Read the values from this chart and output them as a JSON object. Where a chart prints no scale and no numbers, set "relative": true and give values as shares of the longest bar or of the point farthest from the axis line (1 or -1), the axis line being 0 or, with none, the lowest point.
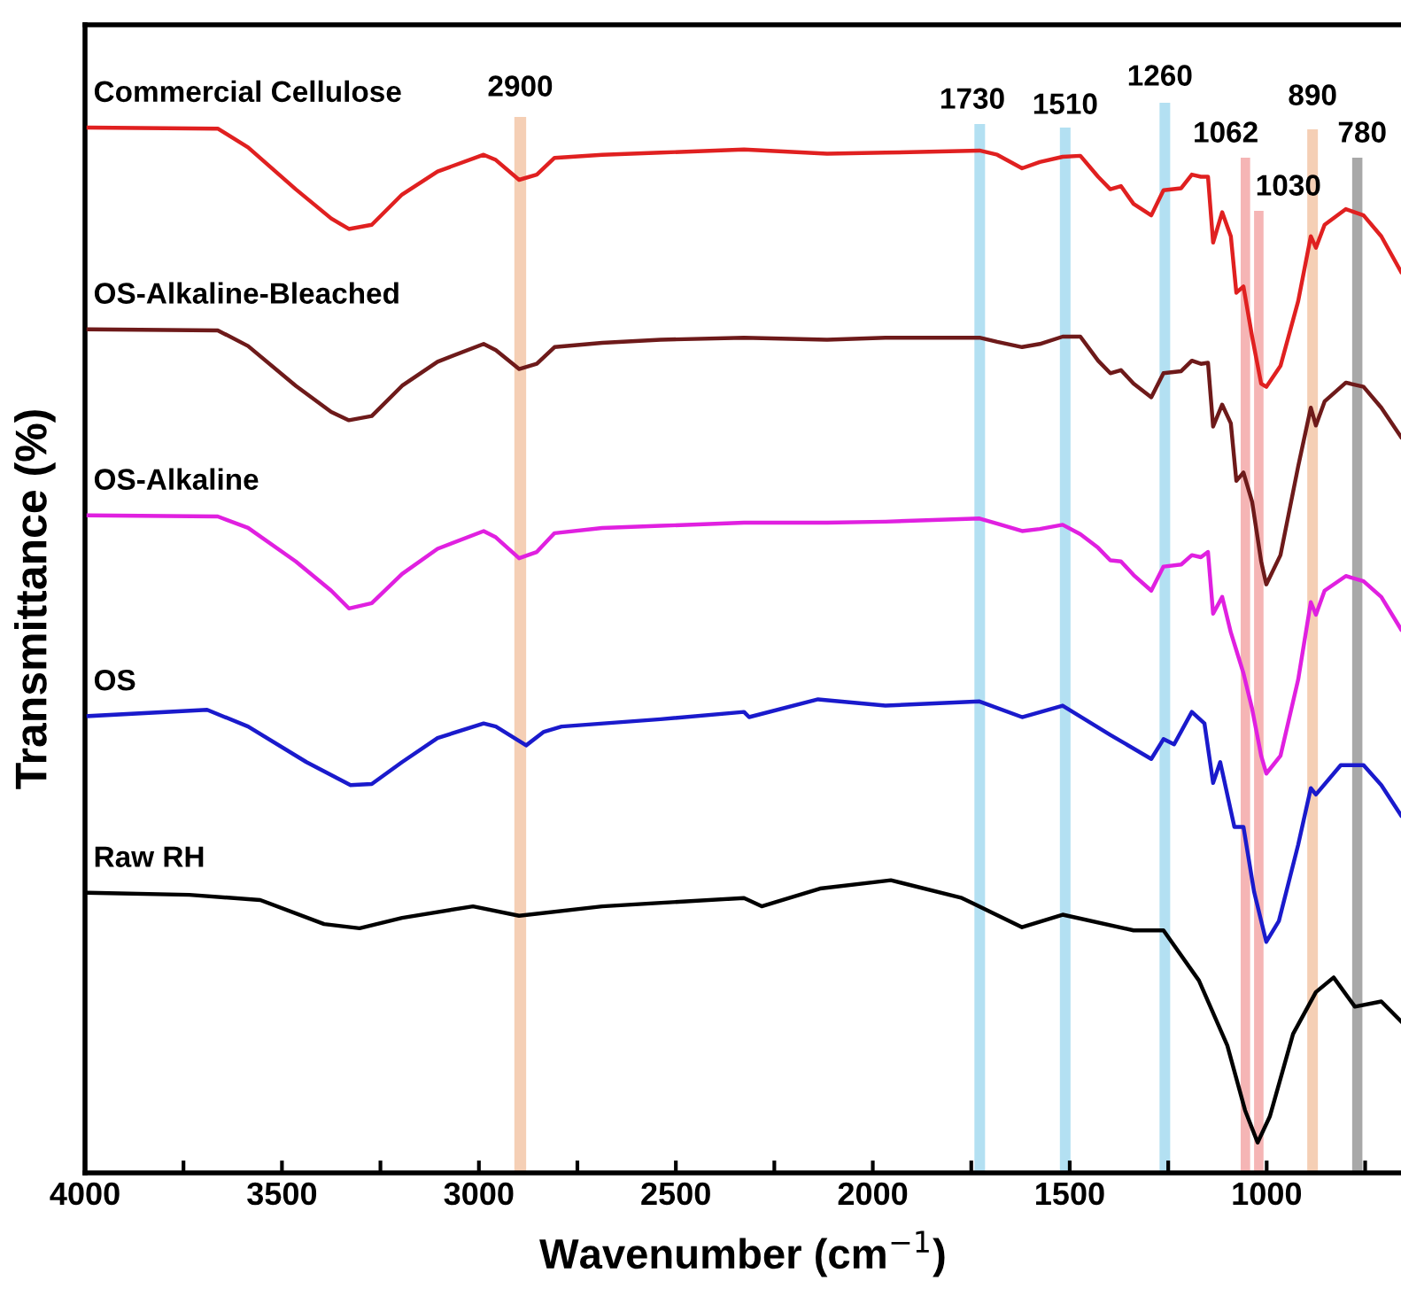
{
  "chart_data": {
    "type": "line",
    "relative": true,
    "xlabel": "Wavenumber (cm$^{−1}$)",
    "ylabel": "Transmittance (%)",
    "xlim": [
      4000,
      659
    ],
    "xticks": [
      4000,
      {
        "value": 3750,
        "label": null
      },
      3500,
      {
        "value": 3250,
        "label": null
      },
      3000,
      {
        "value": 2750,
        "label": null
      },
      2500,
      {
        "value": 2250,
        "label": null
      },
      2000,
      {
        "value": 1750,
        "label": null
      },
      1500,
      {
        "value": 1250,
        "label": null
      },
      1000,
      {
        "value": 750,
        "label": null
      }
    ],
    "tick_labels": "x",
    "grid": false,
    "legend": false,
    "x": [
      3991,
      3663,
      3586,
      3465,
      3375,
      3330,
      3272,
      3195,
      3105,
      2988,
      2957,
      2898,
      2853,
      2808,
      2687,
      2539,
      2327,
      2116,
      1968,
      1729,
      1684,
      1621,
      1576,
      1518,
      1473,
      1428,
      1397,
      1370,
      1338,
      1293,
      1262,
      1217,
      1190,
      1167,
      1149,
      1136,
      1113,
      1091,
      1077,
      1059,
      1037,
      1014,
      1001,
      965,
      920,
      888,
      875,
      853,
      799,
      754,
      709,
      659
    ],
    "series": [
      {
        "name": "Commercial Cellulose",
        "color": "#e02020",
        "values": [
          1.0,
          0.999,
          0.981,
          0.941,
          0.913,
          0.903,
          0.907,
          0.936,
          0.958,
          0.974,
          0.969,
          0.95,
          0.955,
          0.971,
          0.974,
          0.976,
          0.979,
          0.975,
          0.976,
          0.978,
          0.974,
          0.961,
          0.967,
          0.972,
          0.973,
          0.953,
          0.941,
          0.944,
          0.927,
          0.916,
          0.94,
          0.942,
          0.955,
          0.953,
          0.953,
          0.89,
          0.919,
          0.896,
          0.842,
          0.848,
          0.8,
          0.755,
          0.752,
          0.772,
          0.834,
          0.896,
          0.885,
          0.907,
          0.922,
          0.916,
          0.896,
          0.862
        ]
      },
      {
        "name": "OS-Alkaline-Bleached",
        "color": "#6e1a1a",
        "values": [
          0.807,
          0.806,
          0.791,
          0.753,
          0.728,
          0.72,
          0.724,
          0.753,
          0.776,
          0.793,
          0.787,
          0.769,
          0.774,
          0.79,
          0.794,
          0.797,
          0.799,
          0.797,
          0.799,
          0.799,
          0.795,
          0.79,
          0.793,
          0.8,
          0.8,
          0.777,
          0.765,
          0.768,
          0.755,
          0.742,
          0.765,
          0.767,
          0.777,
          0.774,
          0.775,
          0.714,
          0.735,
          0.717,
          0.662,
          0.67,
          0.642,
          0.585,
          0.563,
          0.591,
          0.676,
          0.732,
          0.715,
          0.738,
          0.756,
          0.752,
          0.732,
          0.704
        ]
      },
      {
        "name": "OS-Alkaline",
        "color": "#e020e0",
        "values": [
          0.629,
          0.628,
          0.617,
          0.585,
          0.557,
          0.54,
          0.545,
          0.573,
          0.597,
          0.614,
          0.608,
          0.588,
          0.594,
          0.612,
          0.617,
          0.619,
          0.622,
          0.622,
          0.623,
          0.626,
          0.621,
          0.614,
          0.616,
          0.62,
          0.611,
          0.598,
          0.586,
          0.585,
          0.572,
          0.557,
          0.58,
          0.582,
          0.591,
          0.589,
          0.594,
          0.535,
          0.551,
          0.517,
          0.5,
          0.478,
          0.444,
          0.399,
          0.382,
          0.399,
          0.472,
          0.546,
          0.534,
          0.557,
          0.571,
          0.566,
          0.551,
          0.52
        ]
      },
      {
        "name": "OS",
        "color": "#1a1acc",
        "x": [
          3991,
          3690,
          3586,
          3438,
          3326,
          3272,
          3195,
          3105,
          2988,
          2957,
          2880,
          2835,
          2790,
          2539,
          2327,
          2314,
          2139,
          1968,
          1729,
          1621,
          1518,
          1397,
          1293,
          1262,
          1235,
          1190,
          1158,
          1136,
          1118,
          1082,
          1059,
          1032,
          1001,
          969,
          920,
          888,
          875,
          812,
          754,
          709,
          659
        ],
        "values": [
          0.437,
          0.443,
          0.427,
          0.393,
          0.371,
          0.372,
          0.393,
          0.416,
          0.43,
          0.427,
          0.409,
          0.422,
          0.427,
          0.434,
          0.441,
          0.436,
          0.453,
          0.447,
          0.451,
          0.436,
          0.447,
          0.419,
          0.396,
          0.415,
          0.41,
          0.441,
          0.43,
          0.373,
          0.393,
          0.331,
          0.331,
          0.269,
          0.221,
          0.241,
          0.314,
          0.368,
          0.362,
          0.39,
          0.39,
          0.371,
          0.342
        ]
      },
      {
        "name": "Raw RH",
        "color": "#000000",
        "x": [
          3991,
          3735,
          3555,
          3393,
          3303,
          3195,
          3015,
          2898,
          2687,
          2327,
          2282,
          2134,
          1954,
          1774,
          1621,
          1518,
          1338,
          1262,
          1172,
          1100,
          1055,
          1023,
          992,
          933,
          875,
          830,
          776,
          709,
          659
        ],
        "values": [
          0.268,
          0.266,
          0.261,
          0.238,
          0.234,
          0.244,
          0.255,
          0.246,
          0.255,
          0.263,
          0.255,
          0.272,
          0.28,
          0.263,
          0.235,
          0.247,
          0.232,
          0.232,
          0.184,
          0.122,
          0.06,
          0.029,
          0.054,
          0.133,
          0.173,
          0.187,
          0.159,
          0.164,
          0.145
        ]
      }
    ],
    "bands": [
      {
        "axis": "x",
        "from": 2910,
        "to": 2880,
        "label": "2900",
        "color": "#f5cfb5"
      },
      {
        "axis": "x",
        "from": 1742,
        "to": 1715,
        "label": "1730",
        "color": "#b3e0f2"
      },
      {
        "axis": "x",
        "from": 1525,
        "to": 1498,
        "label": "1510",
        "color": "#b3e0f2"
      },
      {
        "axis": "x",
        "from": 1272,
        "to": 1245,
        "label": "1260",
        "color": "#b3e0f2"
      },
      {
        "axis": "x",
        "from": 1066,
        "to": 1042,
        "label": "1062",
        "color": "#f5b5b5"
      },
      {
        "axis": "x",
        "from": 1032,
        "to": 1008,
        "label": "1030",
        "color": "#f5b5b5"
      },
      {
        "axis": "x",
        "from": 897,
        "to": 870,
        "label": "890",
        "color": "#f5cfb5"
      },
      {
        "axis": "x",
        "from": 783,
        "to": 757,
        "label": "780",
        "color": "#a8a8a8"
      }
    ]
  }
}
